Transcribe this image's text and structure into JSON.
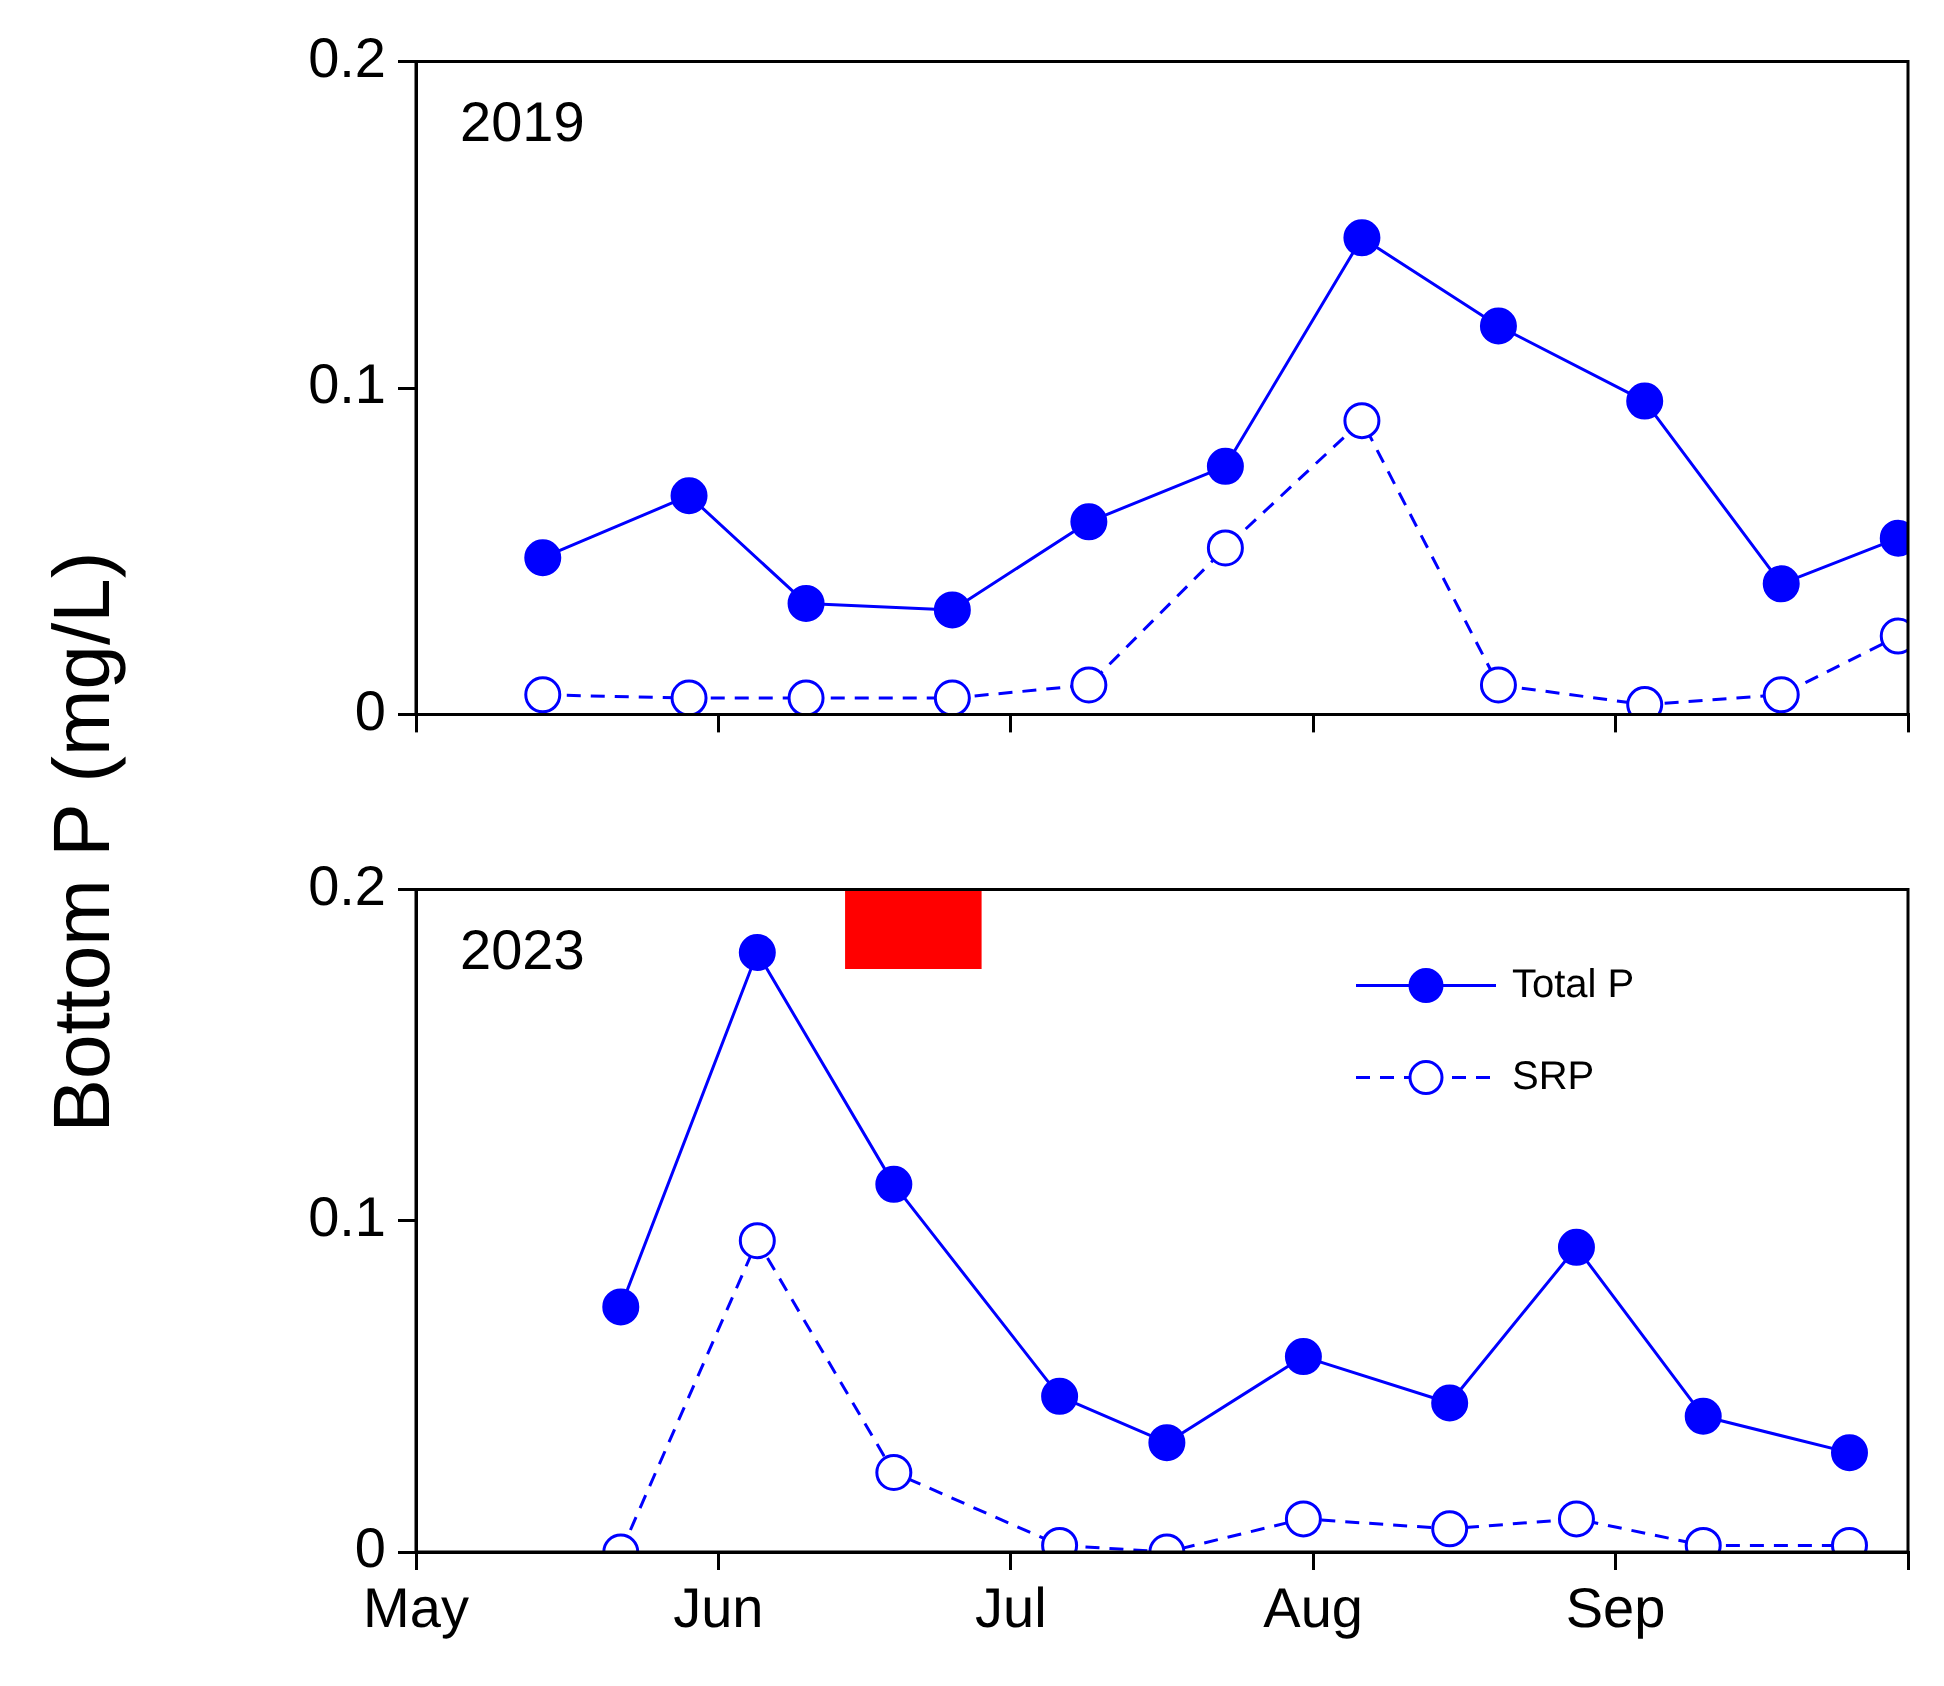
{
  "chart_data": [
    {
      "type": "line",
      "title": "2019",
      "ylabel": "Bottom P (mg/L)",
      "xlim": [
        "--05-01",
        "--10-01"
      ],
      "xticks": [
        {
          "value": "--05-01",
          "label": null
        },
        {
          "value": "--06-01",
          "label": null
        },
        {
          "value": "--07-01",
          "label": null
        },
        {
          "value": "--08-01",
          "label": null
        },
        {
          "value": "--09-01",
          "label": null
        },
        {
          "value": "--10-01",
          "label": null
        }
      ],
      "ylim": [
        0,
        0.2
      ],
      "yticks": [
        0,
        0.1,
        0.2
      ],
      "tick_labels": "y",
      "grid": false,
      "marker": "circle",
      "x": [
        "--05-14",
        "--05-29",
        "--06-10",
        "--06-25",
        "--07-09",
        "--07-23",
        "--08-06",
        "--08-20",
        "--09-04",
        "--09-18",
        "--09-30"
      ],
      "series": [
        {
          "color": "#0000ff",
          "line_style": "solid",
          "values": [
            0.048,
            0.067,
            0.034,
            0.032,
            0.059,
            0.076,
            0.146,
            0.119,
            0.096,
            0.04,
            0.054
          ]
        },
        {
          "color": "#0000ff",
          "line_style": "dashed",
          "values": [
            0.006,
            0.005,
            0.005,
            0.005,
            0.009,
            0.051,
            0.09,
            0.009,
            0.003,
            0.006,
            0.024
          ]
        }
      ]
    },
    {
      "type": "line",
      "title": "2023",
      "xlim": [
        "--05-01",
        "--10-01"
      ],
      "xticks": [
        {
          "value": "--05-01",
          "label": "May"
        },
        {
          "value": "--06-01",
          "label": "Jun"
        },
        {
          "value": "--07-01",
          "label": "Jul"
        },
        {
          "value": "--08-01",
          "label": "Aug"
        },
        {
          "value": "--09-01",
          "label": "Sep"
        },
        {
          "value": "--10-01",
          "label": null
        }
      ],
      "ylim": [
        0,
        0.2
      ],
      "yticks": [
        0,
        0.1,
        0.2
      ],
      "grid": false,
      "marker": "circle",
      "legend": "top right",
      "x": [
        "--05-22",
        "--06-05",
        "--06-19",
        "--07-06",
        "--07-17",
        "--07-31",
        "--08-15",
        "--08-28",
        "--09-10",
        "--09-25"
      ],
      "series": [
        {
          "name": "Total P",
          "color": "#0000ff",
          "line_style": "solid",
          "values": [
            0.074,
            0.181,
            0.111,
            0.047,
            0.033,
            0.059,
            0.045,
            0.092,
            0.041,
            0.03
          ]
        },
        {
          "name": "SRP",
          "color": "#0000ff",
          "line_style": "dashed",
          "values": [
            0.0,
            0.094,
            0.024,
            0.002,
            0.0,
            0.01,
            0.007,
            0.01,
            0.002,
            0.002
          ]
        }
      ],
      "bands": [
        {
          "axis": "x",
          "from": "--06-14",
          "to": "--06-28",
          "color": "#ff0000"
        }
      ]
    }
  ]
}
